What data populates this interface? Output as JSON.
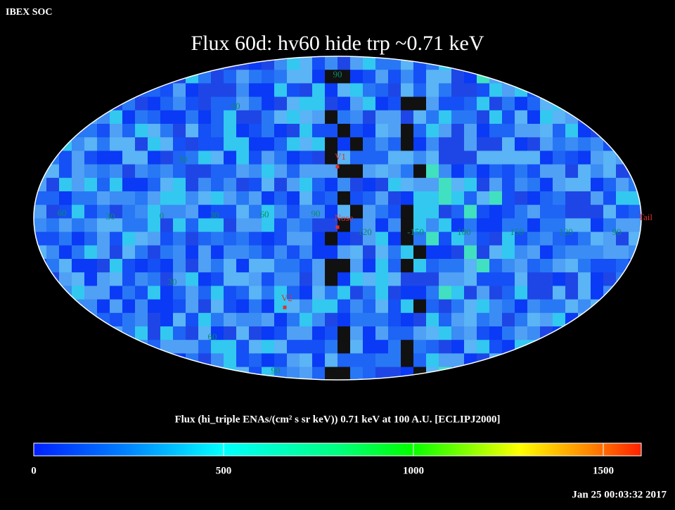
{
  "header": {
    "source": "IBEX SOC",
    "title": "Flux   60d: hv60 hide trp ~0.71 keV"
  },
  "map": {
    "projection": "mollweide",
    "longitude_labels": [
      "60",
      "30",
      "0",
      "30",
      "60",
      "90",
      "120",
      "-150",
      "180",
      "150",
      "120",
      "90"
    ],
    "latitude_labels": [
      "90",
      "60",
      "30",
      "30",
      "60",
      "90"
    ],
    "markers": [
      "V1",
      "Nose",
      "V2",
      "Tail"
    ]
  },
  "colorbar": {
    "label": "Flux (hi_triple ENAs/(cm² s sr keV))  0.71 keV at 100 A.U. [ECLIPJ2000]",
    "lim": [
      0,
      1600
    ],
    "ticks": [
      0,
      500,
      1000,
      1500
    ]
  },
  "timestamp": "Jan 25 00:03:32 2017"
}
